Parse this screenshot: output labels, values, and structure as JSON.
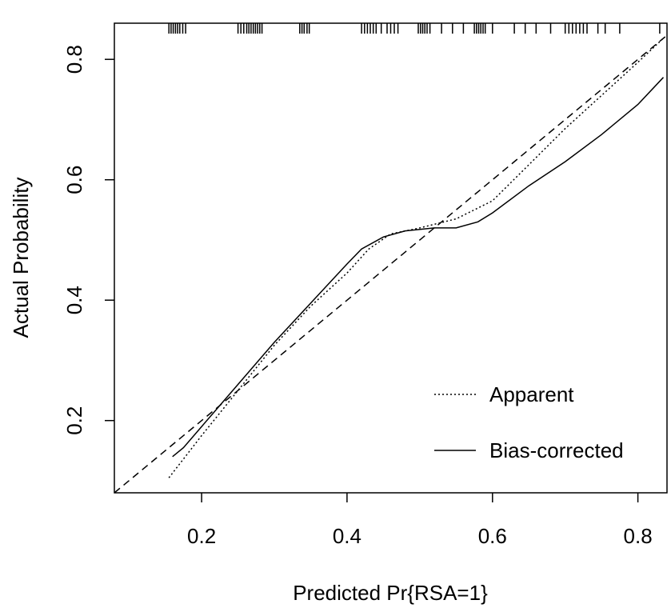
{
  "chart_data": {
    "type": "line",
    "title": "",
    "xlabel": "Predicted Pr{RSA=1}",
    "ylabel": "Actual Probability",
    "xlim": [
      0.08,
      0.84
    ],
    "ylim": [
      0.08,
      0.86
    ],
    "x_ticks": [
      {
        "value": 0.2,
        "label": "0.2"
      },
      {
        "value": 0.4,
        "label": "0.4"
      },
      {
        "value": 0.6,
        "label": "0.6"
      },
      {
        "value": 0.8,
        "label": "0.8"
      }
    ],
    "y_ticks": [
      {
        "value": 0.2,
        "label": "0.2"
      },
      {
        "value": 0.4,
        "label": "0.4"
      },
      {
        "value": 0.6,
        "label": "0.6"
      },
      {
        "value": 0.8,
        "label": "0.8"
      }
    ],
    "grid": false,
    "legend_position": "bottom-right",
    "series": [
      {
        "name": "Apparent",
        "style": "dotted",
        "x": [
          0.155,
          0.2,
          0.25,
          0.3,
          0.35,
          0.4,
          0.43,
          0.46,
          0.5,
          0.55,
          0.6,
          0.65,
          0.7,
          0.75,
          0.8,
          0.835
        ],
        "y": [
          0.105,
          0.175,
          0.25,
          0.325,
          0.39,
          0.445,
          0.485,
          0.51,
          0.52,
          0.535,
          0.565,
          0.625,
          0.685,
          0.74,
          0.795,
          0.835
        ]
      },
      {
        "name": "Bias-corrected",
        "style": "solid",
        "x": [
          0.16,
          0.175,
          0.2,
          0.25,
          0.3,
          0.35,
          0.4,
          0.42,
          0.45,
          0.48,
          0.52,
          0.55,
          0.58,
          0.6,
          0.65,
          0.7,
          0.75,
          0.8,
          0.835
        ],
        "y": [
          0.14,
          0.155,
          0.19,
          0.26,
          0.33,
          0.395,
          0.46,
          0.485,
          0.505,
          0.515,
          0.52,
          0.52,
          0.53,
          0.545,
          0.59,
          0.63,
          0.675,
          0.725,
          0.77
        ]
      },
      {
        "name": "",
        "style": "dashed",
        "x": [
          0.08,
          0.84
        ],
        "y": [
          0.08,
          0.84
        ]
      }
    ],
    "rug_x": [
      0.155,
      0.158,
      0.161,
      0.164,
      0.167,
      0.17,
      0.174,
      0.178,
      0.25,
      0.254,
      0.258,
      0.262,
      0.265,
      0.268,
      0.271,
      0.274,
      0.277,
      0.28,
      0.283,
      0.335,
      0.338,
      0.341,
      0.345,
      0.348,
      0.42,
      0.424,
      0.428,
      0.432,
      0.436,
      0.44,
      0.447,
      0.455,
      0.46,
      0.465,
      0.47,
      0.498,
      0.501,
      0.504,
      0.507,
      0.51,
      0.514,
      0.53,
      0.545,
      0.56,
      0.575,
      0.578,
      0.581,
      0.584,
      0.587,
      0.59,
      0.6,
      0.63,
      0.645,
      0.66,
      0.68,
      0.7,
      0.705,
      0.71,
      0.715,
      0.72,
      0.725,
      0.73,
      0.745,
      0.755,
      0.775,
      0.83
    ]
  }
}
